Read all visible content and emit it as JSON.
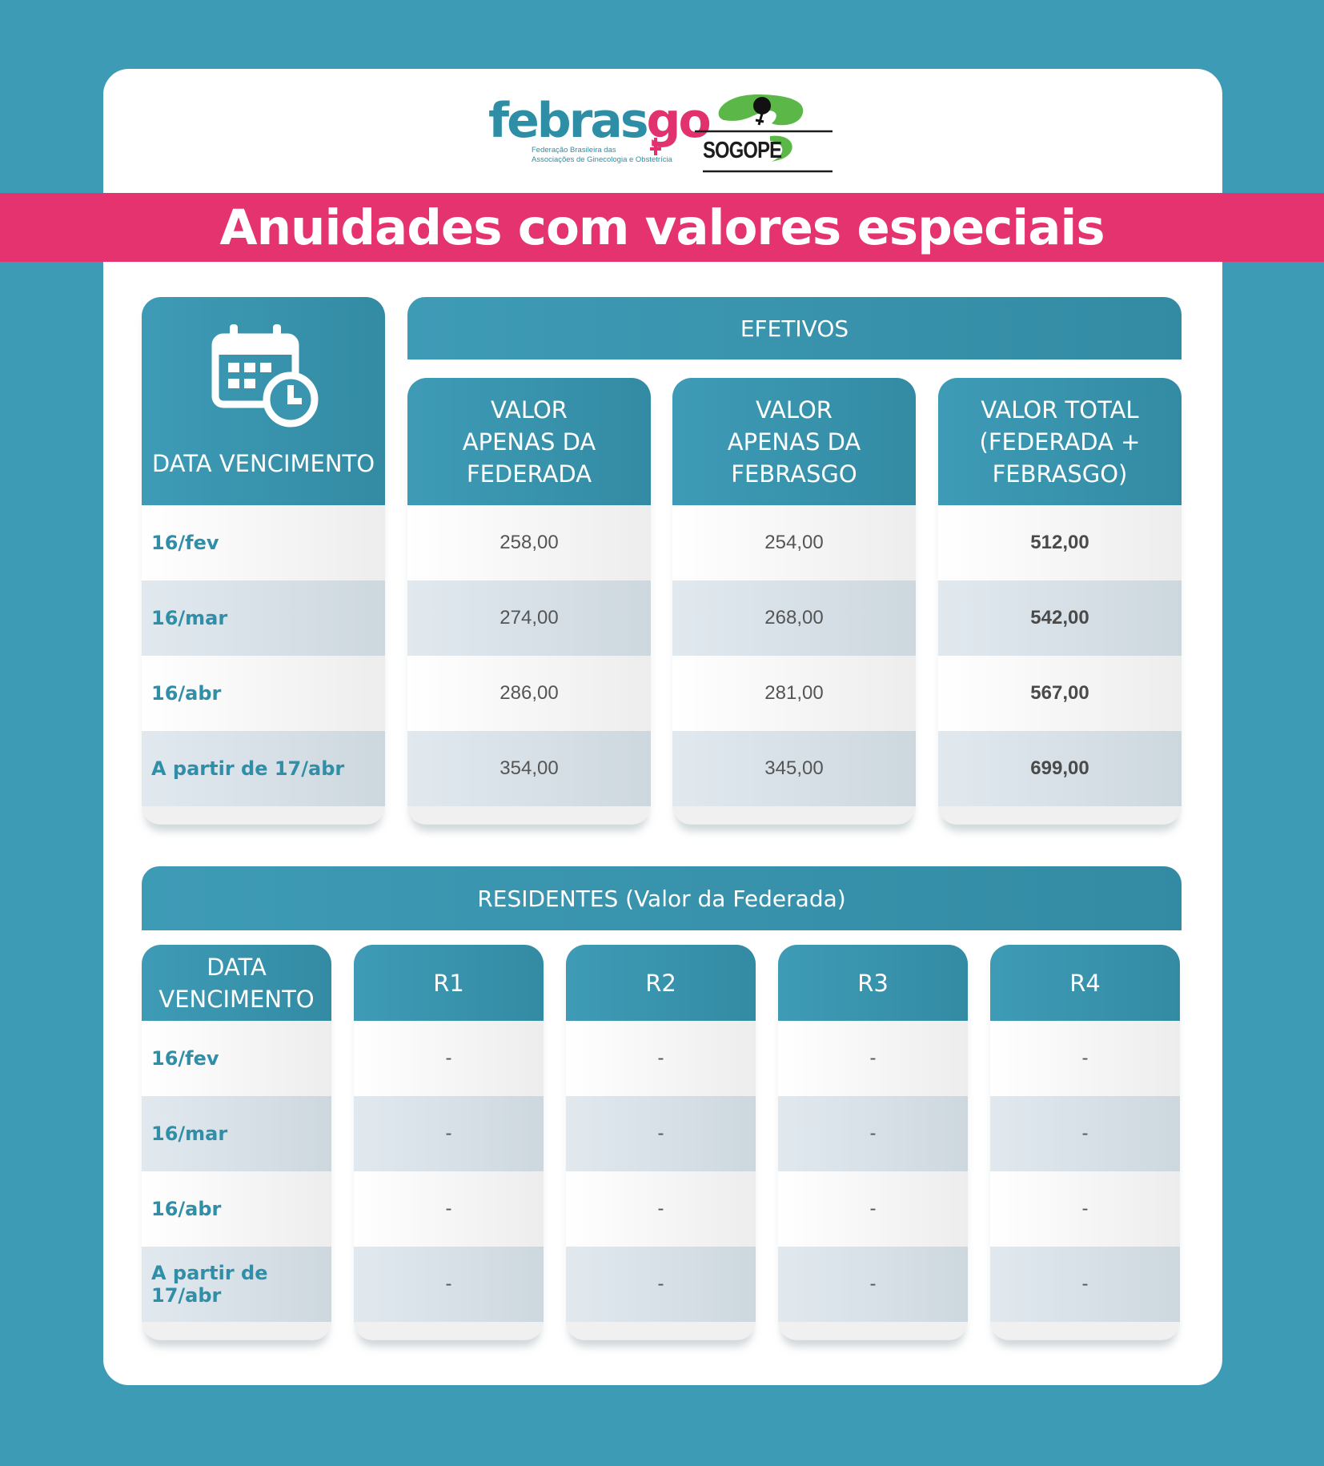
{
  "logos": {
    "febrasgo": {
      "wordmark_main": "febras",
      "wordmark_accent": "go",
      "subtitle_line1": "Federação Brasileira das",
      "subtitle_line2": "Associações de Ginecologia e Obstetrícia",
      "color_main": "#2e8ea6",
      "color_accent": "#e1326f"
    },
    "sogope": {
      "text": "SOGOPE",
      "color_green": "#5bb848",
      "color_dark": "#1c1c1c"
    }
  },
  "title": "Anuidades com valores especiais",
  "colors": {
    "background": "#3e9bb6",
    "title_band": "#e5336f",
    "header": "#3e9bb6",
    "date_text": "#2f8ea8"
  },
  "efetivos": {
    "group_label": "EFETIVOS",
    "date_header": "DATA VENCIMENTO",
    "date_icon": "calendar-clock-icon",
    "columns": [
      {
        "label_lines": [
          "VALOR",
          "APENAS DA",
          "FEDERADA"
        ]
      },
      {
        "label_lines": [
          "VALOR",
          "APENAS DA",
          "FEBRASGO"
        ]
      },
      {
        "label_lines": [
          "VALOR TOTAL",
          "(FEDERADA +",
          "FEBRASGO)"
        ]
      }
    ],
    "rows": [
      {
        "date": "16/fev",
        "federada": "258,00",
        "febrasgo": "254,00",
        "total": "512,00"
      },
      {
        "date": "16/mar",
        "federada": "274,00",
        "febrasgo": "268,00",
        "total": "542,00"
      },
      {
        "date": "16/abr",
        "federada": "286,00",
        "febrasgo": "281,00",
        "total": "567,00"
      },
      {
        "date": "A partir de 17/abr",
        "federada": "354,00",
        "febrasgo": "345,00",
        "total": "699,00"
      }
    ]
  },
  "residentes": {
    "group_label": "RESIDENTES (Valor da Federada)",
    "date_header_lines": [
      "DATA",
      "VENCIMENTO"
    ],
    "columns": [
      "R1",
      "R2",
      "R3",
      "R4"
    ],
    "rows": [
      {
        "date": "16/fev",
        "values": [
          "-",
          "-",
          "-",
          "-"
        ]
      },
      {
        "date": "16/mar",
        "values": [
          "-",
          "-",
          "-",
          "-"
        ]
      },
      {
        "date": "16/abr",
        "values": [
          "-",
          "-",
          "-",
          "-"
        ]
      },
      {
        "date": "A partir de 17/abr",
        "values": [
          "-",
          "-",
          "-",
          "-"
        ]
      }
    ]
  }
}
